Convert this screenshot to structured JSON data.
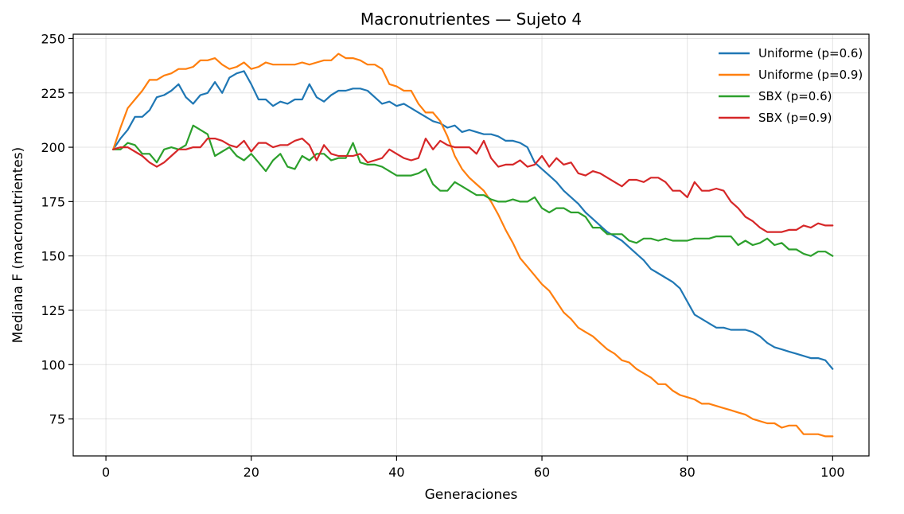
{
  "chart_data": {
    "type": "line",
    "title": "Macronutrientes — Sujeto 4",
    "xlabel": "Generaciones",
    "ylabel": "Mediana F (macronutrientes)",
    "xlim": [
      -4.5,
      105
    ],
    "ylim": [
      58,
      252
    ],
    "xticks": [
      0,
      20,
      40,
      60,
      80,
      100
    ],
    "yticks": [
      75,
      100,
      125,
      150,
      175,
      200,
      225,
      250
    ],
    "grid": true,
    "legend_position": "top-right",
    "x_start": 1,
    "series": [
      {
        "name": "Uniforme (p=0.6)",
        "color": "#1f77b4",
        "values": [
          199,
          204,
          208,
          214,
          214,
          217,
          223,
          224,
          226,
          229,
          223,
          220,
          224,
          225,
          230,
          225,
          232,
          234,
          235,
          229,
          222,
          222,
          219,
          221,
          220,
          222,
          222,
          229,
          223,
          221,
          224,
          226,
          226,
          227,
          227,
          226,
          223,
          220,
          221,
          219,
          220,
          218,
          216,
          214,
          212,
          211,
          209,
          210,
          207,
          208,
          207,
          206,
          206,
          205,
          203,
          203,
          202,
          200,
          193,
          190,
          187,
          184,
          180,
          177,
          174,
          170,
          167,
          164,
          161,
          159,
          157,
          154,
          151,
          148,
          144,
          142,
          140,
          138,
          135,
          129,
          123,
          121,
          119,
          117,
          117,
          116,
          116,
          116,
          115,
          113,
          110,
          108,
          107,
          106,
          105,
          104,
          103,
          103,
          102,
          98
        ]
      },
      {
        "name": "Uniforme (p=0.9)",
        "color": "#ff7f0e",
        "values": [
          199,
          209,
          218,
          222,
          226,
          231,
          231,
          233,
          234,
          236,
          236,
          237,
          240,
          240,
          241,
          238,
          236,
          237,
          239,
          236,
          237,
          239,
          238,
          238,
          238,
          238,
          239,
          238,
          239,
          240,
          240,
          243,
          241,
          241,
          240,
          238,
          238,
          236,
          229,
          228,
          226,
          226,
          220,
          216,
          216,
          212,
          205,
          196,
          190,
          186,
          183,
          180,
          175,
          169,
          162,
          156,
          149,
          145,
          141,
          137,
          134,
          129,
          124,
          121,
          117,
          115,
          113,
          110,
          107,
          105,
          102,
          101,
          98,
          96,
          94,
          91,
          91,
          88,
          86,
          85,
          84,
          82,
          82,
          81,
          80,
          79,
          78,
          77,
          75,
          74,
          73,
          73,
          71,
          72,
          72,
          68,
          68,
          68,
          67,
          67
        ]
      },
      {
        "name": "SBX (p=0.6)",
        "color": "#2ca02c",
        "values": [
          199,
          199,
          202,
          201,
          197,
          197,
          193,
          199,
          200,
          199,
          201,
          210,
          208,
          206,
          196,
          198,
          200,
          196,
          194,
          197,
          193,
          189,
          194,
          197,
          191,
          190,
          196,
          194,
          197,
          197,
          194,
          195,
          195,
          202,
          193,
          192,
          192,
          191,
          189,
          187,
          187,
          187,
          188,
          190,
          183,
          180,
          180,
          184,
          182,
          180,
          178,
          178,
          176,
          175,
          175,
          176,
          175,
          175,
          177,
          172,
          170,
          172,
          172,
          170,
          170,
          168,
          163,
          163,
          160,
          160,
          160,
          157,
          156,
          158,
          158,
          157,
          158,
          157,
          157,
          157,
          158,
          158,
          158,
          159,
          159,
          159,
          155,
          157,
          155,
          156,
          158,
          155,
          156,
          153,
          153,
          151,
          150,
          152,
          152,
          150
        ]
      },
      {
        "name": "SBX (p=0.9)",
        "color": "#d62728",
        "values": [
          199,
          200,
          200,
          198,
          196,
          193,
          191,
          193,
          196,
          199,
          199,
          200,
          200,
          204,
          204,
          203,
          201,
          200,
          203,
          198,
          202,
          202,
          200,
          201,
          201,
          203,
          204,
          201,
          194,
          201,
          197,
          196,
          196,
          196,
          197,
          193,
          194,
          195,
          199,
          197,
          195,
          194,
          195,
          204,
          199,
          203,
          201,
          200,
          200,
          200,
          197,
          203,
          195,
          191,
          192,
          192,
          194,
          191,
          192,
          196,
          191,
          195,
          192,
          193,
          188,
          187,
          189,
          188,
          186,
          184,
          182,
          185,
          185,
          184,
          186,
          186,
          184,
          180,
          180,
          177,
          184,
          180,
          180,
          181,
          180,
          175,
          172,
          168,
          166,
          163,
          161,
          161,
          161,
          162,
          162,
          164,
          163,
          165,
          164,
          164
        ]
      }
    ]
  }
}
